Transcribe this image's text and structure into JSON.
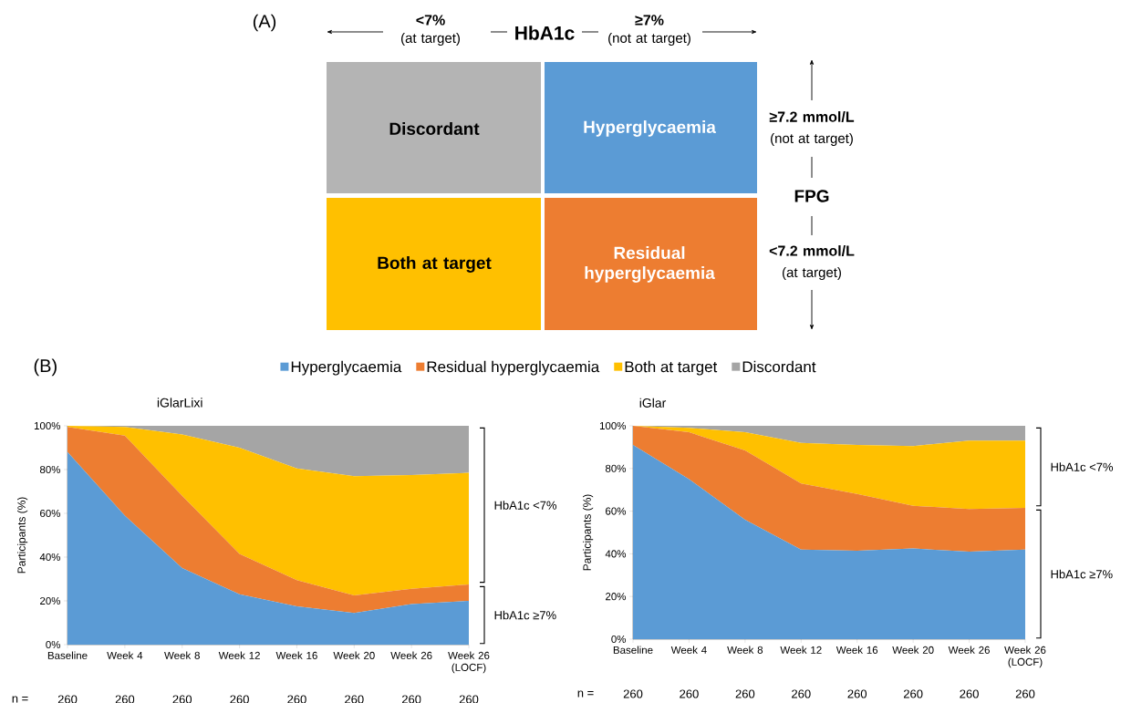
{
  "chart_data": [
    {
      "type": "other",
      "title": "(A)",
      "annotations": [
        "<7%",
        "(at target)",
        "HbA1c",
        "≥7%",
        "(not at target)",
        "Discordant",
        "Hyperglycaemia",
        "Both at target",
        "Residual hyperglycaemia",
        "≥7.2 mmol/L",
        "(not at target)",
        "FPG",
        "<7.2 mmol/L",
        "(at target)"
      ]
    },
    {
      "type": "area",
      "stacked": true,
      "title": "iGlarLixi",
      "ylabel": "Participants (%)",
      "legend": "top",
      "categories": [
        "Baseline",
        "Week 4",
        "Week 8",
        "Week 12",
        "Week 16",
        "Week 20",
        "Week 26",
        "Week 26 (LOCF)"
      ],
      "ylim": [
        0,
        100
      ],
      "yticks": [
        {
          "value": 0,
          "label": "0%"
        },
        {
          "value": 20,
          "label": "20%"
        },
        {
          "value": 40,
          "label": "40%"
        },
        {
          "value": 60,
          "label": "60%"
        },
        {
          "value": 80,
          "label": "80%"
        },
        {
          "value": 100,
          "label": "100%"
        }
      ],
      "series": [
        {
          "name": "Hyperglycaemia",
          "color": "#5b9bd5",
          "values": [
            88,
            59,
            35,
            23,
            17.5,
            14.5,
            18.5,
            20
          ]
        },
        {
          "name": "Residual hyperglycaemia",
          "color": "#ed7d31",
          "values": [
            11.5,
            36.5,
            33,
            18.5,
            12,
            8,
            7,
            7.5
          ]
        },
        {
          "name": "Both at target",
          "color": "#ffc000",
          "values": [
            0.5,
            4,
            28,
            48.5,
            51,
            54.5,
            52,
            51
          ]
        },
        {
          "name": "Discordant",
          "color": "#a5a5a5",
          "values": [
            0,
            0.5,
            4,
            10,
            19.5,
            23,
            22.5,
            21.5
          ]
        }
      ],
      "annotations": [
        "(B)",
        "HbA1c <7%",
        "HbA1c ≥7%",
        "n =",
        "260",
        "260",
        "260",
        "260",
        "260",
        "260",
        "260",
        "260"
      ]
    },
    {
      "type": "area",
      "stacked": true,
      "title": "iGlar",
      "ylabel": "Participants (%)",
      "categories": [
        "Baseline",
        "Week 4",
        "Week 8",
        "Week 12",
        "Week 16",
        "Week 20",
        "Week 26",
        "Week 26 (LOCF)"
      ],
      "ylim": [
        0,
        100
      ],
      "yticks": [
        {
          "value": 0,
          "label": "0%"
        },
        {
          "value": 20,
          "label": "20%"
        },
        {
          "value": 40,
          "label": "40%"
        },
        {
          "value": 60,
          "label": "60%"
        },
        {
          "value": 80,
          "label": "80%"
        },
        {
          "value": 100,
          "label": "100%"
        }
      ],
      "series": [
        {
          "color": "#5b9bd5",
          "values": [
            91,
            75,
            56,
            42,
            41.5,
            42.5,
            41,
            42
          ]
        },
        {
          "color": "#ed7d31",
          "values": [
            9,
            22,
            32.5,
            31,
            26.5,
            20,
            20,
            19.5
          ]
        },
        {
          "color": "#ffc000",
          "values": [
            0,
            2,
            8.5,
            19,
            23,
            28,
            32,
            31.5
          ]
        },
        {
          "color": "#a5a5a5",
          "values": [
            0,
            1,
            3,
            8,
            9,
            9.5,
            7,
            7
          ]
        }
      ],
      "annotations": [
        "HbA1c <7%",
        "HbA1c ≥7%",
        "n =",
        "260",
        "260",
        "260",
        "260",
        "260",
        "260",
        "260",
        "260"
      ]
    }
  ]
}
